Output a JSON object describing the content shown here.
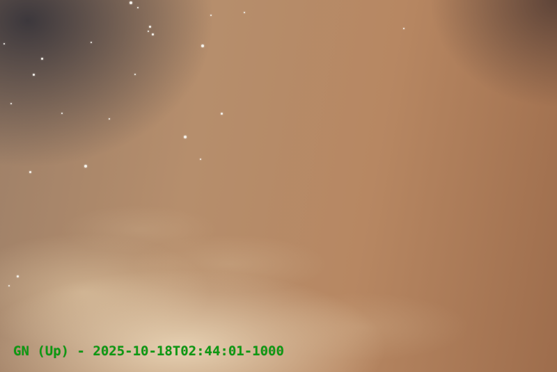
{
  "scene": {
    "description_type": "night-sky-camera-frame",
    "caption": {
      "text": "GN (Up) - 2025-10-18T02:44:01-1000",
      "color": "#0d9a12"
    },
    "colors": {
      "sky_glow": "#b68e6c",
      "star": "#f4f1ea"
    }
  }
}
